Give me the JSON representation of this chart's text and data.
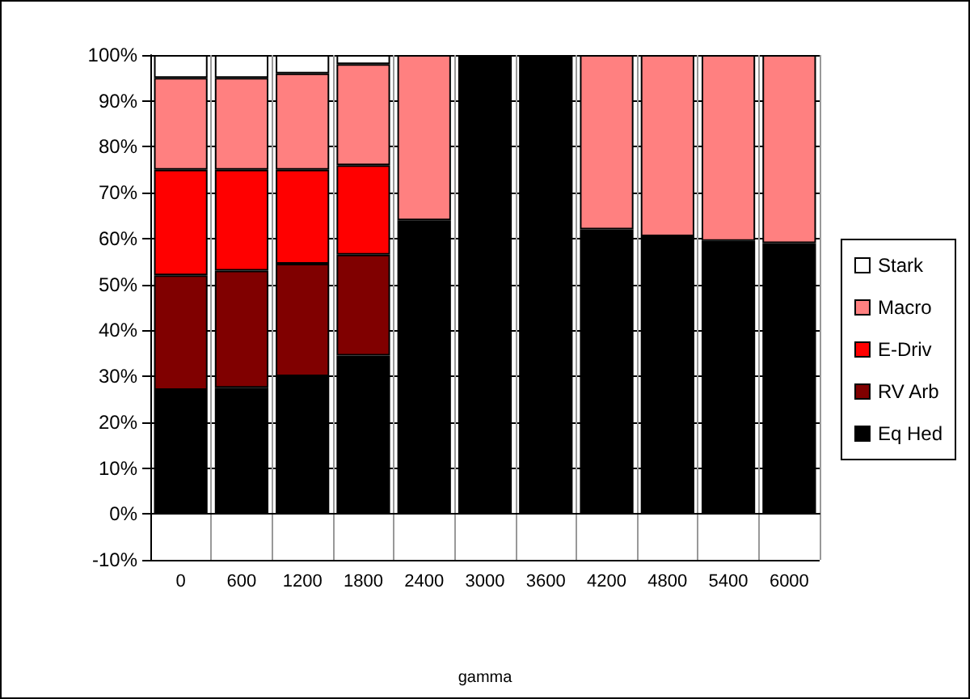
{
  "chart_data": {
    "type": "bar",
    "xlabel": "gamma",
    "stacked": true,
    "categories": [
      "0",
      "600",
      "1200",
      "1800",
      "2400",
      "3000",
      "3600",
      "4200",
      "4800",
      "5400",
      "6000"
    ],
    "series": [
      {
        "name": "Eq Hed",
        "color": "#000000",
        "values": [
          27,
          27.5,
          30,
          34.5,
          64,
          100,
          100,
          62,
          60.5,
          59.5,
          59
        ]
      },
      {
        "name": "RV Arb",
        "color": "#800000",
        "values": [
          25,
          25.5,
          24.5,
          22,
          null,
          null,
          null,
          null,
          null,
          null,
          null
        ]
      },
      {
        "name": "E-Driv",
        "color": "#ff0000",
        "values": [
          23,
          22,
          20.5,
          19.5,
          null,
          null,
          null,
          null,
          null,
          null,
          null
        ]
      },
      {
        "name": "Macro",
        "color": "#ff8080",
        "values": [
          20,
          20,
          21,
          22,
          36,
          null,
          null,
          38,
          39.5,
          40.5,
          41
        ]
      },
      {
        "name": "Stark",
        "color": "#ffffff",
        "values": [
          5,
          5,
          4,
          2,
          null,
          null,
          null,
          null,
          null,
          null,
          null
        ]
      }
    ],
    "ylim": [
      -10,
      100
    ],
    "yticks": [
      {
        "value": -10,
        "label": "-10%"
      },
      {
        "value": 0,
        "label": "0%"
      },
      {
        "value": 10,
        "label": "10%"
      },
      {
        "value": 20,
        "label": "20%"
      },
      {
        "value": 30,
        "label": "30%"
      },
      {
        "value": 40,
        "label": "40%"
      },
      {
        "value": 50,
        "label": "50%"
      },
      {
        "value": 60,
        "label": "60%"
      },
      {
        "value": 70,
        "label": "70%"
      },
      {
        "value": 80,
        "label": "80%"
      },
      {
        "value": 90,
        "label": "90%"
      },
      {
        "value": 100,
        "label": "100%"
      }
    ],
    "grid": true,
    "legend": "right"
  }
}
